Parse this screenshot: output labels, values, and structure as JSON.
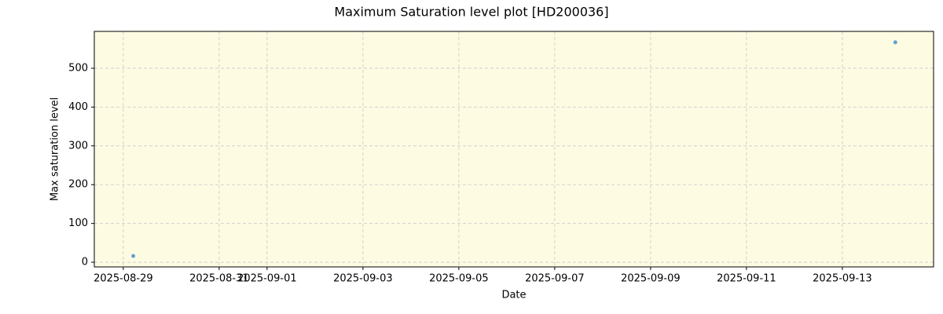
{
  "chart_data": {
    "type": "scatter",
    "title": "Maximum Saturation level plot [HD200036]",
    "x_label": "Date",
    "y_label": "Max saturation level",
    "x": [
      "2025-08-29T05:00",
      "2025-09-14T02:30"
    ],
    "values": [
      16,
      567
    ],
    "color": "#5fa3d0",
    "background": "#fdfbe2",
    "xlim": [
      "2025-08-28T09:30",
      "2025-09-14T21:40"
    ],
    "xticks": [
      "2025-08-29",
      "2025-08-31",
      "2025-09-01",
      "2025-09-03",
      "2025-09-05",
      "2025-09-07",
      "2025-09-09",
      "2025-09-11",
      "2025-09-13"
    ],
    "ylim": [
      -12,
      595
    ],
    "yticks": [
      0,
      100,
      200,
      300,
      400,
      500
    ],
    "grid": true
  }
}
